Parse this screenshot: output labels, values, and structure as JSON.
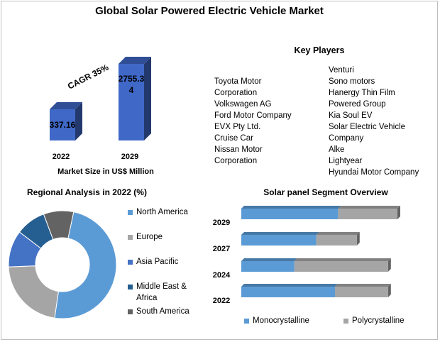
{
  "title": "Global Solar Powered Electric Vehicle Market",
  "market_chart": {
    "cagr_label": "CAGR 35%",
    "xlabel": "Market Size in US$ Million",
    "bars": [
      {
        "year": "2022",
        "value": 337.16,
        "label": "337.16"
      },
      {
        "year": "2029",
        "value": 2755.34,
        "label": "2755.34"
      }
    ]
  },
  "key_players": {
    "title": "Key Players",
    "col1": [
      "Toyota Motor",
      "Corporation",
      "Volkswagen AG",
      "Ford Motor Company",
      "EVX Pty Ltd.",
      "Cruise Car",
      "Nissan Motor",
      "Corporation"
    ],
    "col2": [
      "Venturi",
      "Sono motors",
      "Hanergy Thin Film",
      "Powered Group",
      "Kia Soul EV",
      "Solar Electric Vehicle",
      "Company",
      "Alke",
      "Lightyear",
      "Hyundai Motor Company"
    ]
  },
  "regional": {
    "title": "Regional Analysis in 2022 (%)"
  },
  "segment": {
    "title": "Solar panel Segment Overview"
  },
  "chart_data": [
    {
      "type": "bar",
      "categories": [
        "2022",
        "2029"
      ],
      "values": [
        337.16,
        2755.34
      ],
      "title": "",
      "xlabel": "Market Size in US$ Million",
      "ylabel": "",
      "annotation": "CAGR 35%",
      "color": "#3f68c7"
    },
    {
      "type": "pie",
      "title": "Regional Analysis in 2022 (%)",
      "donut": true,
      "categories": [
        "North America",
        "Europe",
        "Asia Pacific",
        "Middle East & Africa",
        "South America"
      ],
      "values": [
        49,
        22,
        11,
        9,
        9
      ],
      "colors": [
        "#5b9bd5",
        "#a5a5a5",
        "#4472c4",
        "#255e91",
        "#636363"
      ],
      "legend_position": "right"
    },
    {
      "type": "bar",
      "orientation": "horizontal",
      "stacked": true,
      "title": "Solar panel Segment Overview",
      "categories": [
        "2029",
        "2027",
        "2024",
        "2022"
      ],
      "series": [
        {
          "name": "Monocrystalline",
          "values": [
            62,
            48,
            34,
            60
          ],
          "color": "#5b9bd5"
        },
        {
          "name": "Polycrystalline",
          "values": [
            38,
            26,
            60,
            34
          ],
          "color": "#a5a5a5"
        }
      ],
      "legend_position": "bottom"
    }
  ]
}
